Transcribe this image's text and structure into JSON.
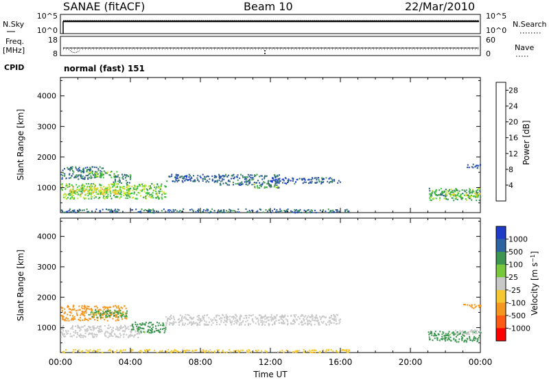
{
  "header": {
    "station": "SANAE (fitACF)",
    "beam": "Beam 10",
    "date": "22/Mar/2010"
  },
  "panels": {
    "nsky_label": "N.Sky",
    "nsky_ticks": [
      "10^5",
      "10^0"
    ],
    "nsearch_label": "N.Search",
    "nsearch_ticks": [
      "10^5",
      "10^0"
    ],
    "freq_label": "Freq.",
    "freq_unit": "[MHz]",
    "freq_ticks": [
      "18",
      "8"
    ],
    "nave_label": "Nave",
    "nave_ticks": [
      "60",
      "0"
    ],
    "cpid_label": "CPID",
    "cpid_value": "normal (fast) 151"
  },
  "colors": {
    "power": [
      "#0a28f0",
      "#2850b4",
      "#30647c",
      "#3c9850",
      "#3cc83c",
      "#c8e628",
      "#f0c81e",
      "#f0963c",
      "#f06428",
      "#f03214"
    ],
    "velocity": [
      "#ff0000",
      "#ff5a14",
      "#f5961e",
      "#f5c832",
      "#c8c8c8",
      "#78c83c",
      "#3c9650",
      "#2d64a0",
      "#1e3cc8"
    ]
  },
  "chart_data": [
    {
      "type": "heatmap",
      "name": "power",
      "xlabel": "Time UT",
      "ylabel": "Slant Range [km]",
      "x_ticks": [
        "00:00",
        "04:00",
        "08:00",
        "12:00",
        "16:00",
        "20:00",
        "00:00"
      ],
      "xlim_hours": [
        0,
        24
      ],
      "ylim_km": [
        180,
        4600
      ],
      "y_ticks": [
        1000,
        2000,
        3000,
        4000
      ],
      "colorbar_label": "Power [dB]",
      "colorbar_ticks": [
        "4",
        "8",
        "12",
        "16",
        "20",
        "24",
        "28"
      ],
      "colorbar_range": [
        0,
        30
      ],
      "regions": [
        {
          "t": [
            0.0,
            6.0
          ],
          "r": [
            650,
            1150
          ],
          "value": 14
        },
        {
          "t": [
            0.5,
            4.0
          ],
          "r": [
            800,
            1050
          ],
          "value": 18
        },
        {
          "t": [
            0.0,
            2.5
          ],
          "r": [
            1300,
            1700
          ],
          "value": 8
        },
        {
          "t": [
            1.5,
            3.2
          ],
          "r": [
            1350,
            1550
          ],
          "value": 13
        },
        {
          "t": [
            3.0,
            4.0
          ],
          "r": [
            1150,
            1450
          ],
          "value": 10
        },
        {
          "t": [
            6.0,
            9.0
          ],
          "r": [
            1200,
            1450
          ],
          "value": 6
        },
        {
          "t": [
            9.0,
            12.5
          ],
          "r": [
            1100,
            1450
          ],
          "value": 7
        },
        {
          "t": [
            12.0,
            16.0
          ],
          "r": [
            1150,
            1350
          ],
          "value": 6
        },
        {
          "t": [
            11.0,
            12.5
          ],
          "r": [
            1000,
            1150
          ],
          "value": 12
        },
        {
          "t": [
            21.0,
            24.0
          ],
          "r": [
            600,
            1000
          ],
          "value": 12
        },
        {
          "t": [
            22.0,
            24.0
          ],
          "r": [
            700,
            850
          ],
          "value": 17
        },
        {
          "t": [
            23.2,
            24.0
          ],
          "r": [
            1650,
            1800
          ],
          "value": 6
        },
        {
          "t": [
            0.0,
            16.5
          ],
          "r": [
            200,
            320
          ],
          "value": 7
        }
      ]
    },
    {
      "type": "heatmap",
      "name": "velocity",
      "xlabel": "Time UT",
      "ylabel": "Slant Range [km]",
      "x_ticks": [
        "00:00",
        "04:00",
        "08:00",
        "12:00",
        "16:00",
        "20:00",
        "00:00"
      ],
      "xlim_hours": [
        0,
        24
      ],
      "ylim_km": [
        180,
        4600
      ],
      "y_ticks": [
        1000,
        2000,
        3000,
        4000
      ],
      "colorbar_label": "Velocity [m s^-1]",
      "colorbar_ticks": [
        "1000",
        "500",
        "100",
        "25",
        "-25",
        "-100",
        "-500",
        "-1000"
      ],
      "regions": [
        {
          "t": [
            0.0,
            4.5
          ],
          "r": [
            700,
            1100
          ],
          "value": 0
        },
        {
          "t": [
            4.0,
            6.0
          ],
          "r": [
            850,
            1200
          ],
          "value": 150
        },
        {
          "t": [
            0.0,
            3.8
          ],
          "r": [
            1250,
            1750
          ],
          "value": -200
        },
        {
          "t": [
            1.5,
            3.8
          ],
          "r": [
            1350,
            1600
          ],
          "value": 120
        },
        {
          "t": [
            6.0,
            16.0
          ],
          "r": [
            1100,
            1450
          ],
          "value": 0
        },
        {
          "t": [
            21.0,
            24.0
          ],
          "r": [
            550,
            900
          ],
          "value": 150
        },
        {
          "t": [
            22.5,
            24.0
          ],
          "r": [
            800,
            950
          ],
          "value": 0
        },
        {
          "t": [
            23.0,
            24.0
          ],
          "r": [
            1650,
            1800
          ],
          "value": -400
        },
        {
          "t": [
            0.0,
            16.5
          ],
          "r": [
            200,
            300
          ],
          "value": -50
        }
      ]
    }
  ]
}
